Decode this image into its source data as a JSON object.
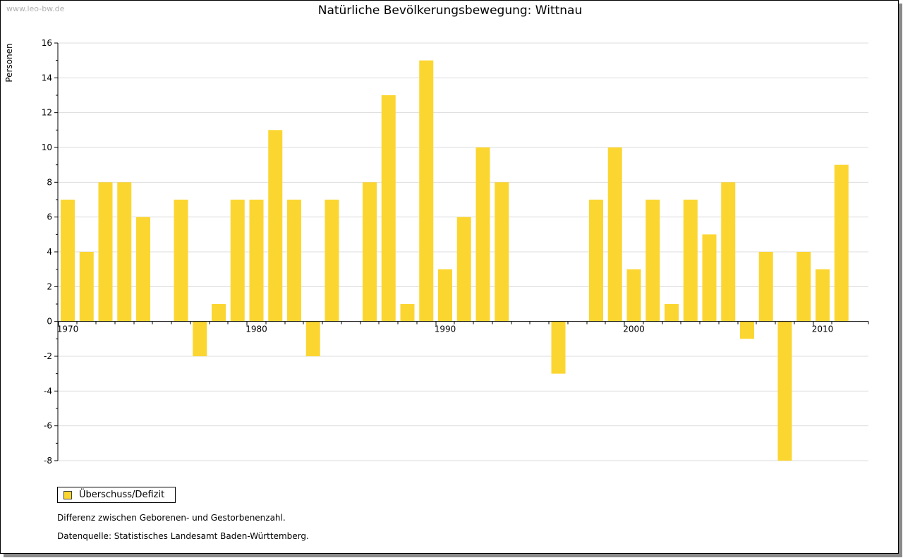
{
  "watermark": "www.leo-bw.de",
  "chart_data": {
    "type": "bar",
    "title": "Natürliche Bevölkerungsbewegung: Wittnau",
    "xlabel": "",
    "ylabel": "Personen",
    "ylim": [
      -8,
      16
    ],
    "yticks": [
      16,
      14,
      12,
      10,
      8,
      6,
      4,
      2,
      0,
      -2,
      -4,
      -6,
      -8
    ],
    "xtick_labels": [
      "1970",
      "1980",
      "1990",
      "2000",
      "2010"
    ],
    "categories": [
      1970,
      1971,
      1972,
      1973,
      1974,
      1975,
      1976,
      1977,
      1978,
      1979,
      1980,
      1981,
      1982,
      1983,
      1984,
      1985,
      1986,
      1987,
      1988,
      1989,
      1990,
      1991,
      1992,
      1993,
      1994,
      1995,
      1996,
      1997,
      1998,
      1999,
      2000,
      2001,
      2002,
      2003,
      2004,
      2005,
      2006,
      2007,
      2008,
      2009,
      2010,
      2011
    ],
    "series": [
      {
        "name": "Überschuss/Defizit",
        "color": "#fcd630",
        "values": [
          7,
          4,
          8,
          8,
          6,
          0,
          7,
          -2,
          1,
          7,
          7,
          11,
          7,
          -2,
          7,
          0,
          8,
          13,
          1,
          15,
          3,
          6,
          10,
          8,
          0,
          0,
          -3,
          0,
          7,
          10,
          3,
          7,
          1,
          7,
          5,
          8,
          -1,
          4,
          -8,
          4,
          3,
          9
        ]
      }
    ],
    "grid": true,
    "legend": "bottom-left"
  },
  "legend": {
    "label": "Überschuss/Defizit"
  },
  "notes": {
    "line1": "Differenz zwischen Geborenen- und Gestorbenenzahl.",
    "line2": "Datenquelle: Statistisches Landesamt Baden-Württemberg."
  }
}
